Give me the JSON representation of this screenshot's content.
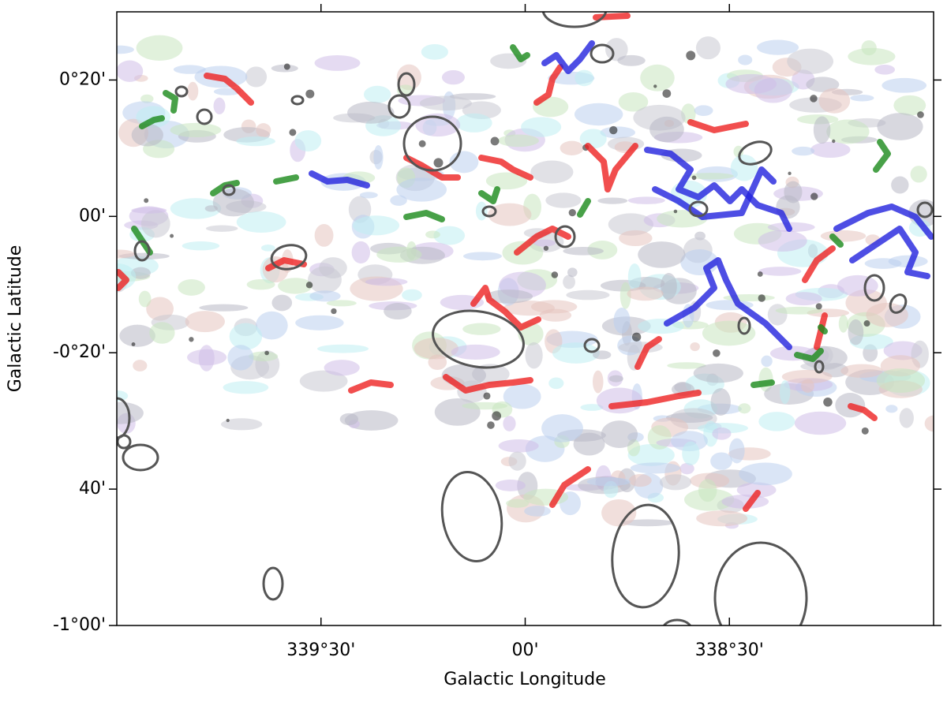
{
  "chart_data": {
    "type": "image",
    "xlabel": "Galactic Longitude",
    "ylabel": "Galactic Latitude",
    "xlim": [
      340.0,
      338.0
    ],
    "xticks": [
      {
        "value": 339.5,
        "label": "339°30'"
      },
      {
        "value": 339.0,
        "label": "00'"
      },
      {
        "value": 338.5,
        "label": "338°30'"
      }
    ],
    "ylim": [
      -60,
      30
    ],
    "yticks": [
      {
        "value": 20,
        "label": "0°20'"
      },
      {
        "value": 0,
        "label": "00'"
      },
      {
        "value": -20,
        "label": "-0°20'"
      },
      {
        "value": -40,
        "label": "40'"
      },
      {
        "value": -60,
        "label": "-1°00'"
      }
    ]
  }
}
